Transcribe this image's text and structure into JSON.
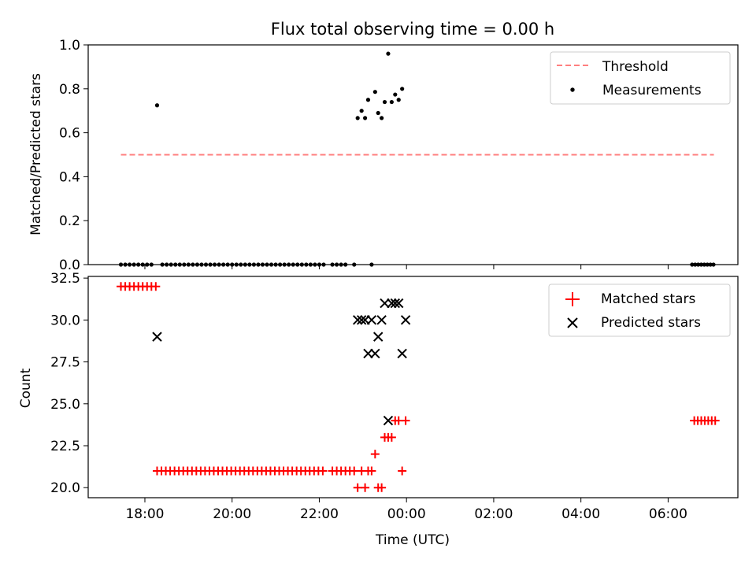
{
  "chart_data": {
    "title": "Flux total observing time = 0.00 h",
    "x_axis": {
      "label": "Time (UTC)",
      "unit": "hours relative to 00:00 UTC",
      "range": [
        -7.3,
        7.6
      ],
      "ticks": [
        -6,
        -4,
        -2,
        0,
        2,
        4,
        6
      ],
      "tick_labels": [
        "18:00",
        "20:00",
        "22:00",
        "00:00",
        "02:00",
        "04:00",
        "06:00"
      ]
    },
    "panels": [
      {
        "type": "scatter",
        "ylabel": "Matched/Predicted stars",
        "ylim": [
          0.0,
          1.0
        ],
        "yticks": [
          0.0,
          0.2,
          0.4,
          0.6,
          0.8,
          1.0
        ],
        "ytick_labels": [
          "0.0",
          "0.2",
          "0.4",
          "0.6",
          "0.8",
          "1.0"
        ],
        "legend": {
          "position": "upper right",
          "entries": [
            "Threshold",
            "Measurements"
          ]
        },
        "series": [
          {
            "name": "Threshold",
            "kind": "line",
            "style": "dashed",
            "color": "#ff7f7f",
            "x": [
              -6.55,
              7.05
            ],
            "y": [
              0.5,
              0.5
            ]
          },
          {
            "name": "Measurements",
            "kind": "scatter",
            "marker": "dot",
            "color": "#000000",
            "points": [
              [
                -6.55,
                0
              ],
              [
                -6.45,
                0
              ],
              [
                -6.35,
                0
              ],
              [
                -6.25,
                0
              ],
              [
                -6.15,
                0
              ],
              [
                -6.05,
                0
              ],
              [
                -5.95,
                0
              ],
              [
                -5.85,
                0
              ],
              [
                -5.72,
                0.725
              ],
              [
                -5.6,
                0
              ],
              [
                -5.5,
                0
              ],
              [
                -5.4,
                0
              ],
              [
                -5.3,
                0
              ],
              [
                -5.2,
                0
              ],
              [
                -5.1,
                0
              ],
              [
                -5.0,
                0
              ],
              [
                -4.9,
                0
              ],
              [
                -4.8,
                0
              ],
              [
                -4.7,
                0
              ],
              [
                -4.6,
                0
              ],
              [
                -4.5,
                0
              ],
              [
                -4.4,
                0
              ],
              [
                -4.3,
                0
              ],
              [
                -4.2,
                0
              ],
              [
                -4.1,
                0
              ],
              [
                -4.0,
                0
              ],
              [
                -3.9,
                0
              ],
              [
                -3.8,
                0
              ],
              [
                -3.7,
                0
              ],
              [
                -3.6,
                0
              ],
              [
                -3.5,
                0
              ],
              [
                -3.4,
                0
              ],
              [
                -3.3,
                0
              ],
              [
                -3.2,
                0
              ],
              [
                -3.1,
                0
              ],
              [
                -3.0,
                0
              ],
              [
                -2.9,
                0
              ],
              [
                -2.8,
                0
              ],
              [
                -2.7,
                0
              ],
              [
                -2.6,
                0
              ],
              [
                -2.5,
                0
              ],
              [
                -2.4,
                0
              ],
              [
                -2.3,
                0
              ],
              [
                -2.2,
                0
              ],
              [
                -2.1,
                0
              ],
              [
                -2.0,
                0
              ],
              [
                -1.9,
                0
              ],
              [
                -1.7,
                0
              ],
              [
                -1.6,
                0
              ],
              [
                -1.5,
                0
              ],
              [
                -1.4,
                0
              ],
              [
                -1.2,
                0
              ],
              [
                -1.12,
                0.667
              ],
              [
                -1.03,
                0.7
              ],
              [
                -0.95,
                0.667
              ],
              [
                -0.88,
                0.75
              ],
              [
                -0.8,
                0
              ],
              [
                -0.72,
                0.786
              ],
              [
                -0.65,
                0.69
              ],
              [
                -0.57,
                0.667
              ],
              [
                -0.5,
                0.74
              ],
              [
                -0.42,
                0.96
              ],
              [
                -0.34,
                0.74
              ],
              [
                -0.26,
                0.774
              ],
              [
                -0.18,
                0.75
              ],
              [
                -0.1,
                0.8
              ],
              [
                6.55,
                0
              ],
              [
                6.62,
                0
              ],
              [
                6.69,
                0
              ],
              [
                6.76,
                0
              ],
              [
                6.83,
                0
              ],
              [
                6.9,
                0
              ],
              [
                6.97,
                0
              ],
              [
                7.04,
                0
              ]
            ]
          }
        ]
      },
      {
        "type": "scatter",
        "ylabel": "Count",
        "ylim": [
          19.4,
          32.6
        ],
        "yticks": [
          20.0,
          22.5,
          25.0,
          27.5,
          30.0,
          32.5
        ],
        "ytick_labels": [
          "20.0",
          "22.5",
          "25.0",
          "27.5",
          "30.0",
          "32.5"
        ],
        "legend": {
          "position": "upper right",
          "entries": [
            "Matched stars",
            "Predicted stars"
          ]
        },
        "series": [
          {
            "name": "Matched stars",
            "kind": "scatter",
            "marker": "plus",
            "color": "#ff0000",
            "points": [
              [
                -6.55,
                32
              ],
              [
                -6.45,
                32
              ],
              [
                -6.35,
                32
              ],
              [
                -6.25,
                32
              ],
              [
                -6.15,
                32
              ],
              [
                -6.05,
                32
              ],
              [
                -5.95,
                32
              ],
              [
                -5.85,
                32
              ],
              [
                -5.75,
                32
              ],
              [
                -5.72,
                21
              ],
              [
                -5.62,
                21
              ],
              [
                -5.52,
                21
              ],
              [
                -5.42,
                21
              ],
              [
                -5.32,
                21
              ],
              [
                -5.22,
                21
              ],
              [
                -5.12,
                21
              ],
              [
                -5.02,
                21
              ],
              [
                -4.92,
                21
              ],
              [
                -4.82,
                21
              ],
              [
                -4.72,
                21
              ],
              [
                -4.62,
                21
              ],
              [
                -4.52,
                21
              ],
              [
                -4.42,
                21
              ],
              [
                -4.32,
                21
              ],
              [
                -4.22,
                21
              ],
              [
                -4.12,
                21
              ],
              [
                -4.02,
                21
              ],
              [
                -3.92,
                21
              ],
              [
                -3.82,
                21
              ],
              [
                -3.72,
                21
              ],
              [
                -3.62,
                21
              ],
              [
                -3.52,
                21
              ],
              [
                -3.42,
                21
              ],
              [
                -3.32,
                21
              ],
              [
                -3.22,
                21
              ],
              [
                -3.12,
                21
              ],
              [
                -3.02,
                21
              ],
              [
                -2.92,
                21
              ],
              [
                -2.82,
                21
              ],
              [
                -2.72,
                21
              ],
              [
                -2.62,
                21
              ],
              [
                -2.52,
                21
              ],
              [
                -2.42,
                21
              ],
              [
                -2.32,
                21
              ],
              [
                -2.22,
                21
              ],
              [
                -2.12,
                21
              ],
              [
                -2.02,
                21
              ],
              [
                -1.92,
                21
              ],
              [
                -1.7,
                21
              ],
              [
                -1.6,
                21
              ],
              [
                -1.5,
                21
              ],
              [
                -1.4,
                21
              ],
              [
                -1.3,
                21
              ],
              [
                -1.2,
                21
              ],
              [
                -1.12,
                20
              ],
              [
                -1.03,
                21
              ],
              [
                -0.95,
                20
              ],
              [
                -0.88,
                21
              ],
              [
                -0.8,
                21
              ],
              [
                -0.72,
                22
              ],
              [
                -0.65,
                20
              ],
              [
                -0.57,
                20
              ],
              [
                -0.5,
                23
              ],
              [
                -0.42,
                23
              ],
              [
                -0.34,
                23
              ],
              [
                -0.26,
                24
              ],
              [
                -0.18,
                24
              ],
              [
                -0.1,
                21
              ],
              [
                -0.02,
                24
              ],
              [
                6.6,
                24
              ],
              [
                6.68,
                24
              ],
              [
                6.76,
                24
              ],
              [
                6.84,
                24
              ],
              [
                6.92,
                24
              ],
              [
                7.0,
                24
              ],
              [
                7.08,
                24
              ]
            ]
          },
          {
            "name": "Predicted stars",
            "kind": "scatter",
            "marker": "x",
            "color": "#000000",
            "points": [
              [
                -5.72,
                29
              ],
              [
                -1.12,
                30
              ],
              [
                -1.03,
                30
              ],
              [
                -0.95,
                30
              ],
              [
                -0.88,
                28
              ],
              [
                -0.8,
                30
              ],
              [
                -0.72,
                28
              ],
              [
                -0.65,
                29
              ],
              [
                -0.57,
                30
              ],
              [
                -0.5,
                31
              ],
              [
                -0.42,
                24
              ],
              [
                -0.34,
                31
              ],
              [
                -0.26,
                31
              ],
              [
                -0.18,
                31
              ],
              [
                -0.1,
                28
              ],
              [
                -0.02,
                30
              ]
            ]
          }
        ]
      }
    ]
  }
}
